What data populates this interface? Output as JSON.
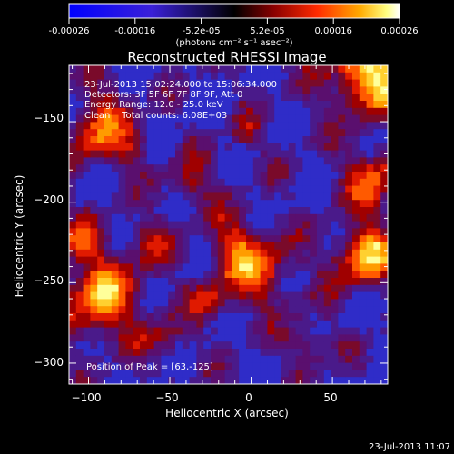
{
  "colorbar": {
    "ticks": [
      "-0.00026",
      "-0.00016",
      "-5.2e-05",
      "5.2e-05",
      "0.00016",
      "0.00026"
    ],
    "unit_label": "(photons cm⁻² s⁻¹ asec⁻²)"
  },
  "chart_data": {
    "type": "heatmap",
    "title": "Reconstructed RHESSI Image",
    "xlabel": "Heliocentric X (arcsec)",
    "ylabel": "Heliocentric Y (arcsec)",
    "xlim": [
      -112,
      84
    ],
    "ylim": [
      -313,
      -115
    ],
    "xticks": [
      -100,
      -50,
      0,
      50
    ],
    "yticks": [
      -150,
      -200,
      -250,
      -300
    ],
    "xtick_labels": [
      "−100",
      "−50",
      "0",
      "50"
    ],
    "ytick_labels": [
      "−150",
      "−200",
      "−250",
      "−300"
    ],
    "value_range": [
      -0.00026,
      0.00026
    ],
    "peak": [
      63,
      -125
    ],
    "annotations": [
      "23-Jul-2013 15:02:24.000 to 15:06:34.000",
      "Detectors: 3F 5F 6F 7F 8F 9F, Att 0",
      "Energy Range: 12.0 - 25.0 keV",
      "Clean    Total counts: 6.08E+03"
    ],
    "peak_label": "Position of Peak = [63,-125]"
  },
  "footer": {
    "timestamp": "23-Jul-2013 11:07"
  }
}
